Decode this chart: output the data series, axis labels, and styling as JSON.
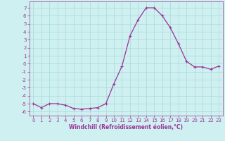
{
  "x": [
    0,
    1,
    2,
    3,
    4,
    5,
    6,
    7,
    8,
    9,
    10,
    11,
    12,
    13,
    14,
    15,
    16,
    17,
    18,
    19,
    20,
    21,
    22,
    23
  ],
  "y": [
    -5.0,
    -5.5,
    -5.0,
    -5.0,
    -5.2,
    -5.6,
    -5.7,
    -5.6,
    -5.5,
    -5.0,
    -2.5,
    -0.3,
    3.5,
    5.5,
    7.0,
    7.0,
    6.0,
    4.5,
    2.5,
    0.3,
    -0.4,
    -0.4,
    -0.7,
    -0.3
  ],
  "line_color": "#993399",
  "marker": "+",
  "markersize": 3,
  "linewidth": 0.9,
  "xlabel": "Windchill (Refroidissement éolien,°C)",
  "xlabel_fontsize": 5.5,
  "ylabel_ticks": [
    7,
    6,
    5,
    4,
    3,
    2,
    1,
    0,
    -1,
    -2,
    -3,
    -4,
    -5,
    -6
  ],
  "ylim": [
    -6.5,
    7.8
  ],
  "xlim": [
    -0.5,
    23.5
  ],
  "bg_color": "#cff0f0",
  "grid_color": "#a8d8d8",
  "tick_fontsize": 5,
  "title": ""
}
